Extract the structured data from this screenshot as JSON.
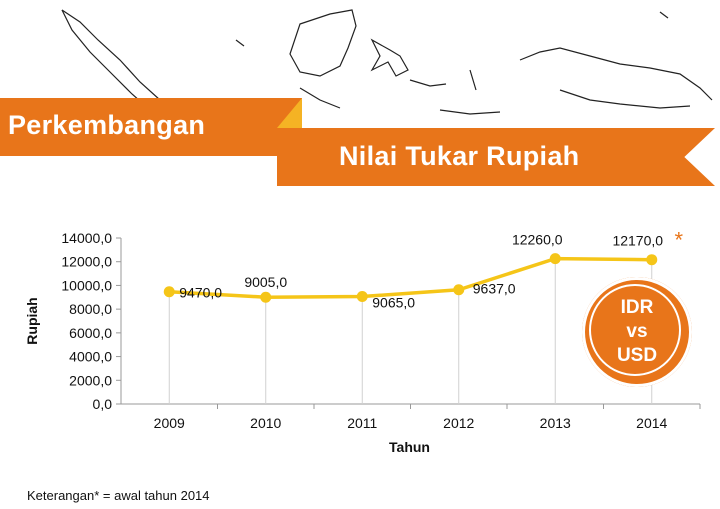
{
  "banner": {
    "line1": "Perkembangan",
    "line2": "Nilai Tukar Rupiah"
  },
  "badge": {
    "line1": "IDR",
    "line2": "vs",
    "line3": "USD"
  },
  "footnote": "Keterangan* =  awal tahun  2014",
  "colors": {
    "accent": "#e8751a",
    "accent_light": "#f5b324",
    "series": "#f5c518"
  },
  "chart_data": {
    "type": "line",
    "xlabel": "Tahun",
    "ylabel": "Rupiah",
    "ylim": [
      0,
      14000
    ],
    "yticks": [
      "0,0",
      "2000,0",
      "4000,0",
      "6000,0",
      "8000,0",
      "10000,0",
      "12000,0",
      "14000,0"
    ],
    "categories": [
      "2009",
      "2010",
      "2011",
      "2012",
      "2013",
      "2014"
    ],
    "series": [
      {
        "values": [
          9470,
          9005,
          9065,
          9637,
          12260,
          12170
        ],
        "data_labels": [
          "9470,0",
          "9005,0",
          "9065,0",
          "9637,0",
          "12260,0",
          "12170,0"
        ]
      }
    ],
    "grid": "vertical",
    "annotation": "*"
  }
}
